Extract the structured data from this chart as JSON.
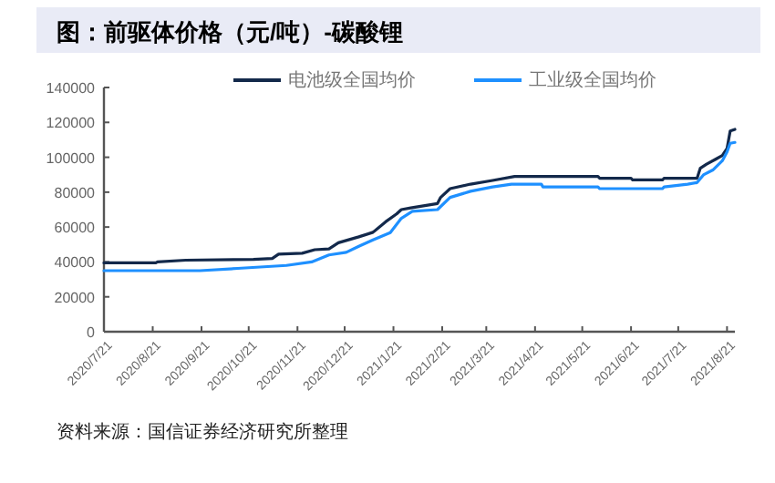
{
  "chart_data": {
    "type": "line",
    "title": "图：前驱体价格（元/吨）-碳酸锂",
    "annotations": [
      "资料来源：国信证券经济研究所整理"
    ],
    "xlim": [
      "2020-07-21",
      "2021-08-26"
    ],
    "xticks": [
      {
        "value": "2020-07-21",
        "label": "2020/7/21"
      },
      {
        "value": "2020-08-21",
        "label": "2020/8/21"
      },
      {
        "value": "2020-09-21",
        "label": "2020/9/21"
      },
      {
        "value": "2020-10-21",
        "label": "2020/10/21"
      },
      {
        "value": "2020-11-21",
        "label": "2020/11/21"
      },
      {
        "value": "2020-12-21",
        "label": "2020/12/21"
      },
      {
        "value": "2021-01-21",
        "label": "2021/1/21"
      },
      {
        "value": "2021-02-21",
        "label": "2021/2/21"
      },
      {
        "value": "2021-03-21",
        "label": "2021/3/21"
      },
      {
        "value": "2021-04-21",
        "label": "2021/4/21"
      },
      {
        "value": "2021-05-21",
        "label": "2021/5/21"
      },
      {
        "value": "2021-06-21",
        "label": "2021/6/21"
      },
      {
        "value": "2021-07-21",
        "label": "2021/7/21"
      },
      {
        "value": "2021-08-21",
        "label": "2021/8/21"
      }
    ],
    "ylim": [
      0,
      140000
    ],
    "yticks": [
      0,
      20000,
      40000,
      60000,
      80000,
      100000,
      120000,
      140000
    ],
    "grid": false,
    "legend": "top",
    "line_style": "solid",
    "series": [
      {
        "name": "电池级全国均价",
        "color": "#13294b",
        "x": [
          "2020-07-21",
          "2020-08-23",
          "2020-08-24",
          "2020-09-11",
          "2020-10-24",
          "2020-11-05",
          "2020-11-09",
          "2020-11-24",
          "2020-12-02",
          "2020-12-11",
          "2020-12-17",
          "2020-12-30",
          "2021-01-08",
          "2021-01-16",
          "2021-01-23",
          "2021-01-26",
          "2021-02-01",
          "2021-02-18",
          "2021-02-20",
          "2021-02-26",
          "2021-03-11",
          "2021-03-25",
          "2021-04-08",
          "2021-05-31",
          "2021-06-01",
          "2021-06-21",
          "2021-06-22",
          "2021-07-11",
          "2021-07-12",
          "2021-08-02",
          "2021-08-04",
          "2021-08-08",
          "2021-08-14",
          "2021-08-18",
          "2021-08-21",
          "2021-08-23",
          "2021-08-26"
        ],
        "values": [
          39500,
          39500,
          40000,
          41000,
          41500,
          42000,
          44500,
          45000,
          47000,
          47500,
          51000,
          54400,
          57000,
          63000,
          67500,
          70000,
          71000,
          73500,
          77000,
          82000,
          84600,
          86700,
          89000,
          89000,
          88000,
          88000,
          87000,
          87000,
          88000,
          88000,
          93700,
          96000,
          99000,
          101000,
          105000,
          115000,
          116000
        ]
      },
      {
        "name": "工业级全国均价",
        "color": "#1e90ff",
        "x": [
          "2020-07-21",
          "2020-09-20",
          "2020-10-14",
          "2020-11-14",
          "2020-11-30",
          "2020-12-11",
          "2020-12-22",
          "2020-12-30",
          "2021-01-08",
          "2021-01-19",
          "2021-01-26",
          "2021-02-02",
          "2021-02-18",
          "2021-02-26",
          "2021-03-11",
          "2021-03-25",
          "2021-04-06",
          "2021-04-25",
          "2021-04-26",
          "2021-05-31",
          "2021-06-01",
          "2021-07-11",
          "2021-07-12",
          "2021-07-27",
          "2021-08-02",
          "2021-08-06",
          "2021-08-12",
          "2021-08-18",
          "2021-08-21",
          "2021-08-23",
          "2021-08-26"
        ],
        "values": [
          35000,
          35000,
          36300,
          38000,
          40000,
          44000,
          45500,
          49000,
          52600,
          56800,
          65000,
          69000,
          70000,
          77000,
          80500,
          83000,
          84600,
          84600,
          83000,
          83000,
          82000,
          82000,
          83000,
          84600,
          85500,
          89900,
          92700,
          98000,
          103000,
          108000,
          108500
        ]
      }
    ]
  }
}
